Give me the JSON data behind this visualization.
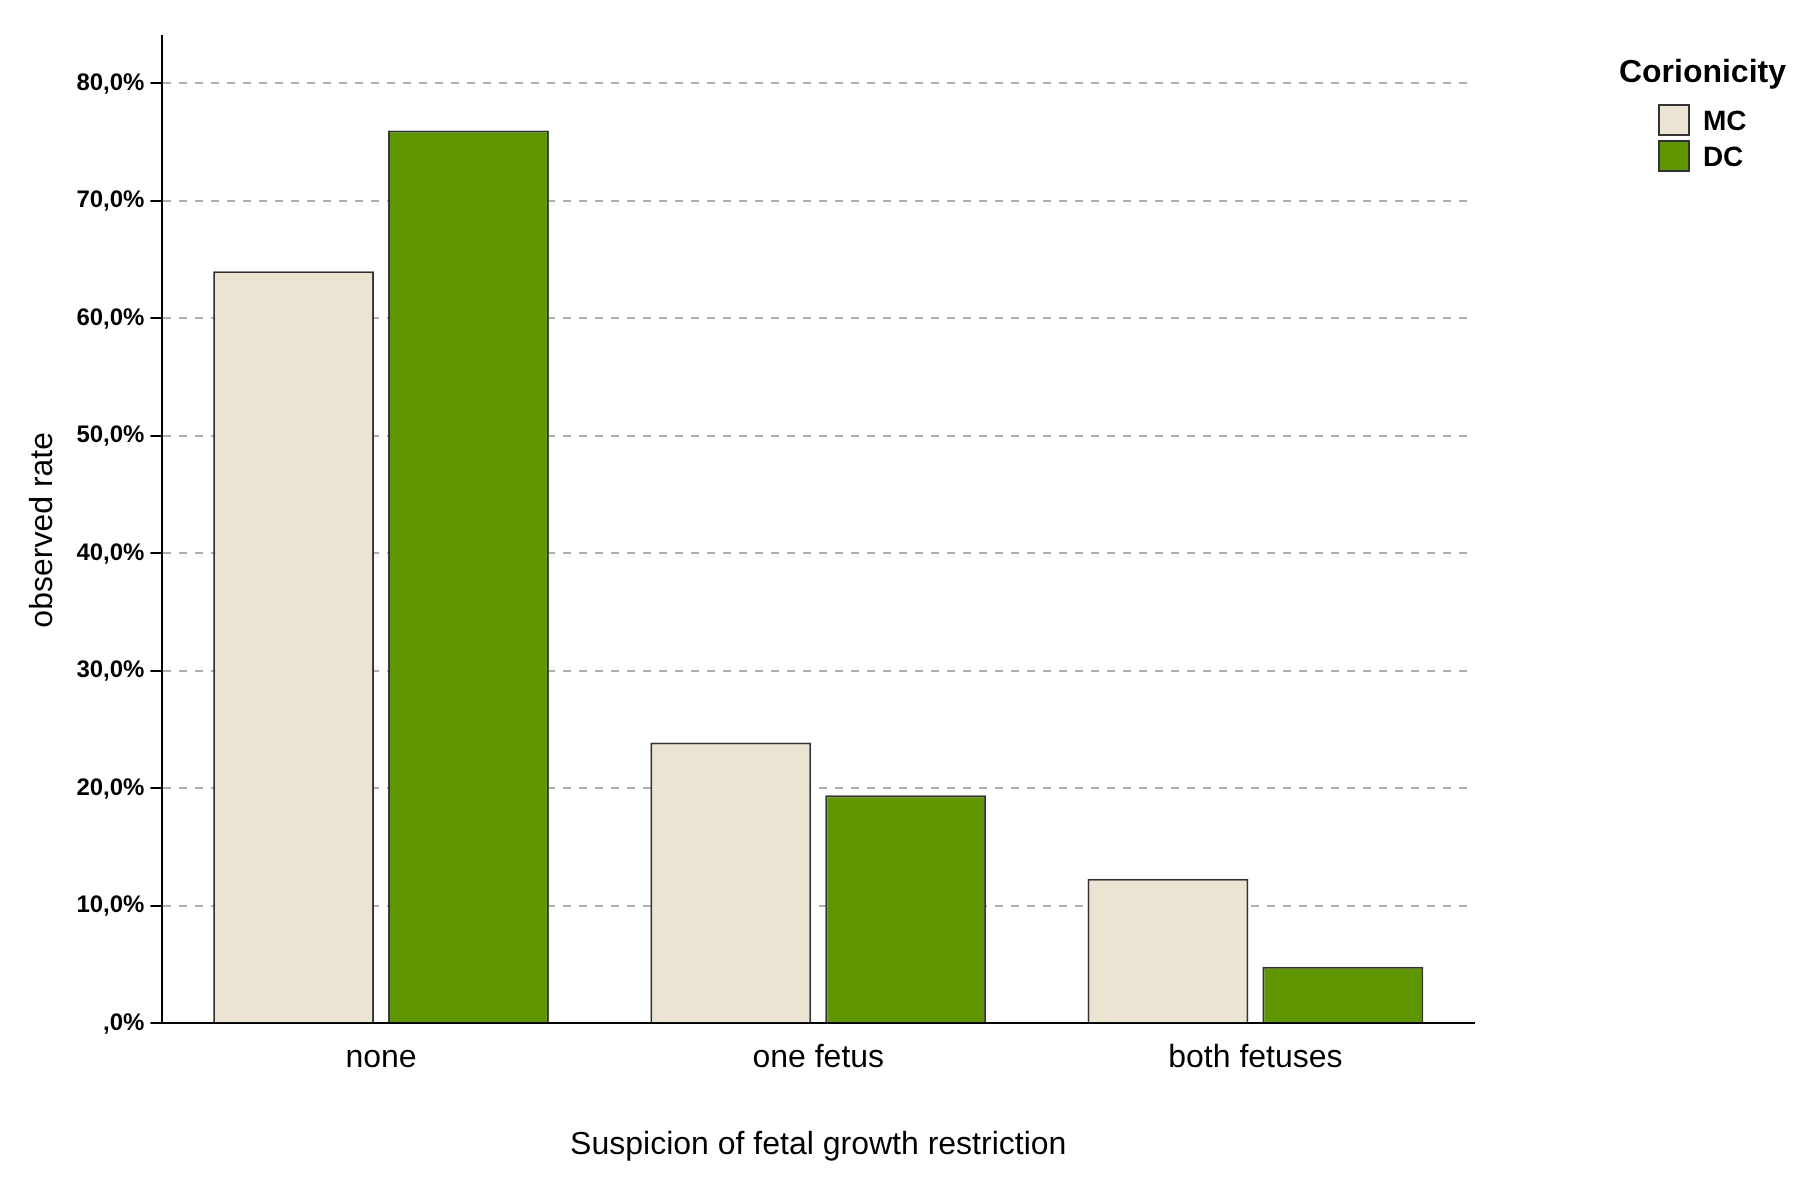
{
  "chart_data": {
    "type": "bar",
    "xlabel": "Suspicion of fetal growth restriction",
    "ylabel": "observed rate",
    "legend_title": "Corionicity",
    "categories": [
      "none",
      "one fetus",
      "both fetuses"
    ],
    "series": [
      {
        "name": "MC",
        "color": "#ebe4d3",
        "values": [
          64.0,
          23.9,
          12.3
        ]
      },
      {
        "name": "DC",
        "color": "#5f9600",
        "values": [
          76.0,
          19.4,
          4.8
        ]
      }
    ],
    "ylim": [
      0,
      84
    ],
    "yticks": [
      {
        "value": 0,
        "label": ",0%"
      },
      {
        "value": 10,
        "label": "10,0%"
      },
      {
        "value": 20,
        "label": "20,0%"
      },
      {
        "value": 30,
        "label": "30,0%"
      },
      {
        "value": 40,
        "label": "40,0%"
      },
      {
        "value": 50,
        "label": "50,0%"
      },
      {
        "value": 60,
        "label": "60,0%"
      },
      {
        "value": 70,
        "label": "70,0%"
      },
      {
        "value": 80,
        "label": "80,0%"
      }
    ],
    "grid": "y",
    "legend": "top right"
  }
}
